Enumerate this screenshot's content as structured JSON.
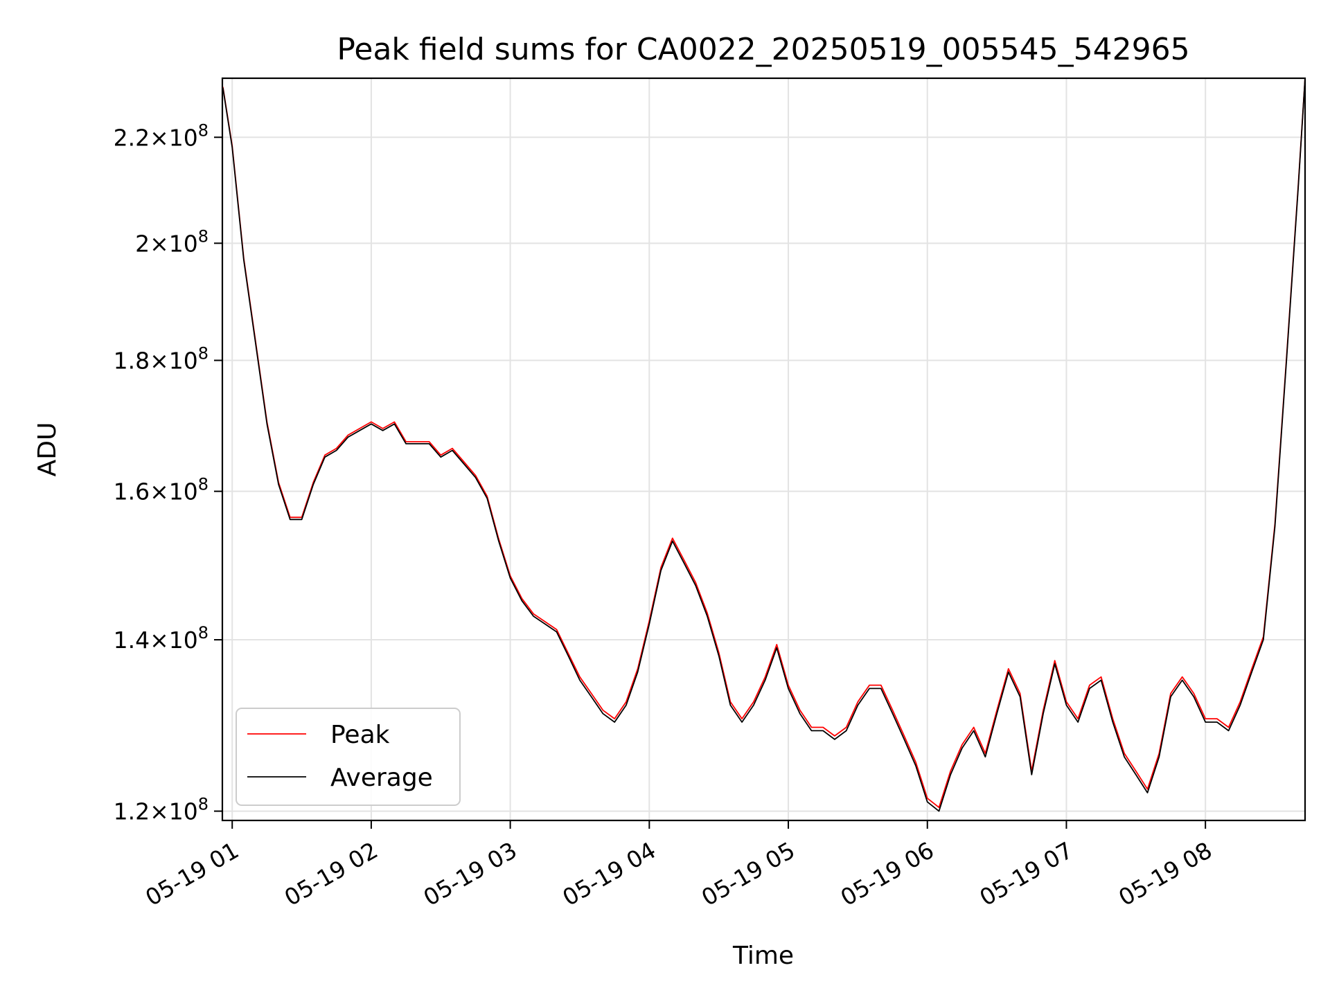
{
  "chart_data": {
    "type": "line",
    "title": "Peak field sums for CA0022_20250519_005545_542965",
    "xlabel": "Time",
    "ylabel": "ADU",
    "y_scale": "log",
    "grid": true,
    "legend_position": "lower-left",
    "xlim": [
      "2025-05-19 00:55:45",
      "2025-05-19 08:43"
    ],
    "ylim": [
      119000000,
      232000000
    ],
    "x_ticks": [
      "05-19 01",
      "05-19 02",
      "05-19 03",
      "05-19 04",
      "05-19 05",
      "05-19 06",
      "05-19 07",
      "05-19 08"
    ],
    "y_ticks": [
      {
        "value": 120000000,
        "mantissa": "1.2"
      },
      {
        "value": 140000000,
        "mantissa": "1.4"
      },
      {
        "value": 160000000,
        "mantissa": "1.6"
      },
      {
        "value": 180000000,
        "mantissa": "1.8"
      },
      {
        "value": 200000000,
        "mantissa": "2"
      },
      {
        "value": 220000000,
        "mantissa": "2.2"
      }
    ],
    "y_tick_suffix": "×10",
    "y_tick_exponent": "8",
    "series": [
      {
        "name": "Peak",
        "color": "#ff0000"
      },
      {
        "name": "Average",
        "color": "#000000"
      }
    ],
    "x": [
      "00:56",
      "01:00",
      "01:05",
      "01:10",
      "01:15",
      "01:20",
      "01:25",
      "01:30",
      "01:35",
      "01:40",
      "01:45",
      "01:50",
      "01:55",
      "02:00",
      "02:05",
      "02:10",
      "02:15",
      "02:20",
      "02:25",
      "02:30",
      "02:35",
      "02:40",
      "02:45",
      "02:50",
      "02:55",
      "03:00",
      "03:05",
      "03:10",
      "03:15",
      "03:20",
      "03:25",
      "03:30",
      "03:35",
      "03:40",
      "03:45",
      "03:50",
      "03:55",
      "04:00",
      "04:05",
      "04:10",
      "04:15",
      "04:20",
      "04:25",
      "04:30",
      "04:35",
      "04:40",
      "04:45",
      "04:50",
      "04:55",
      "05:00",
      "05:05",
      "05:10",
      "05:15",
      "05:20",
      "05:25",
      "05:30",
      "05:35",
      "05:40",
      "05:45",
      "05:50",
      "05:55",
      "06:00",
      "06:05",
      "06:10",
      "06:15",
      "06:20",
      "06:25",
      "06:30",
      "06:35",
      "06:40",
      "06:45",
      "06:50",
      "06:55",
      "07:00",
      "07:05",
      "07:10",
      "07:15",
      "07:20",
      "07:25",
      "07:30",
      "07:35",
      "07:40",
      "07:45",
      "07:50",
      "07:55",
      "08:00",
      "08:05",
      "08:10",
      "08:15",
      "08:20",
      "08:25",
      "08:30",
      "08:35",
      "08:40",
      "08:43"
    ],
    "y_average": [
      230000000,
      218000000,
      197000000,
      183000000,
      170000000,
      161000000,
      156000000,
      156000000,
      161000000,
      165000000,
      166000000,
      168000000,
      169000000,
      170000000,
      169000000,
      170000000,
      167000000,
      167000000,
      167000000,
      165000000,
      166000000,
      164000000,
      162000000,
      159000000,
      153000000,
      148000000,
      145000000,
      143000000,
      142000000,
      141000000,
      138000000,
      135000000,
      133000000,
      131000000,
      130000000,
      132000000,
      136000000,
      142000000,
      149000000,
      153000000,
      150000000,
      147000000,
      143000000,
      138000000,
      132000000,
      130000000,
      132000000,
      135000000,
      139000000,
      134000000,
      131000000,
      129000000,
      129000000,
      128000000,
      129000000,
      132000000,
      134000000,
      134000000,
      131000000,
      128000000,
      125000000,
      121000000,
      120000000,
      124000000,
      127000000,
      129000000,
      126000000,
      131000000,
      136000000,
      133000000,
      124000000,
      131000000,
      137000000,
      132000000,
      130000000,
      134000000,
      135000000,
      130000000,
      126000000,
      124000000,
      122000000,
      126000000,
      133000000,
      135000000,
      133000000,
      130000000,
      130000000,
      129000000,
      132000000,
      136000000,
      140000000,
      155000000,
      180000000,
      210000000,
      232000000
    ],
    "y_peak": [
      230200000,
      218300000,
      197300000,
      183300000,
      170300000,
      161300000,
      156300000,
      156300000,
      161300000,
      165300000,
      166300000,
      168300000,
      169300000,
      170300000,
      169300000,
      170300000,
      167300000,
      167300000,
      167300000,
      165300000,
      166300000,
      164300000,
      162300000,
      159300000,
      153300000,
      148300000,
      145300000,
      143300000,
      142300000,
      141300000,
      138300000,
      135400000,
      133400000,
      131400000,
      130400000,
      132400000,
      136400000,
      142400000,
      149400000,
      153400000,
      150400000,
      147400000,
      143400000,
      138400000,
      132400000,
      130400000,
      132400000,
      135400000,
      139400000,
      134400000,
      131400000,
      129400000,
      129400000,
      128400000,
      129400000,
      132400000,
      134400000,
      134400000,
      131400000,
      128400000,
      125400000,
      121400000,
      120400000,
      124400000,
      127400000,
      129400000,
      126400000,
      131400000,
      136400000,
      133400000,
      124400000,
      131400000,
      137400000,
      132400000,
      130400000,
      134400000,
      135400000,
      130400000,
      126400000,
      124400000,
      122400000,
      126400000,
      133400000,
      135400000,
      133400000,
      130400000,
      130400000,
      129400000,
      132400000,
      136400000,
      140400000,
      155400000,
      180400000,
      210400000,
      232000000
    ]
  }
}
